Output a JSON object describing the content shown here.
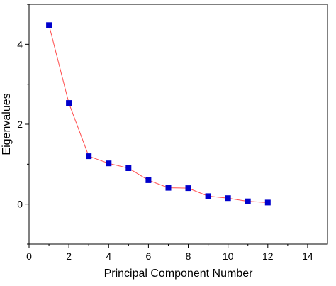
{
  "chart_data": {
    "type": "scatter",
    "xlabel": "Principal Component Number",
    "ylabel": "Eigenvalues",
    "xlim": [
      0,
      15
    ],
    "ylim": [
      -1,
      5
    ],
    "x_ticks": [
      0,
      2,
      4,
      6,
      8,
      10,
      12,
      14
    ],
    "y_ticks": [
      0,
      2,
      4
    ],
    "grid": false,
    "series": [
      {
        "x": [
          1,
          2,
          3,
          4,
          5,
          6,
          7,
          8,
          9,
          10,
          11,
          12
        ],
        "values": [
          4.48,
          2.53,
          1.2,
          1.02,
          0.9,
          0.6,
          0.41,
          0.4,
          0.2,
          0.15,
          0.07,
          0.04
        ],
        "marker_color": "#0000cc",
        "line_color": "#ff4d4d"
      }
    ]
  }
}
